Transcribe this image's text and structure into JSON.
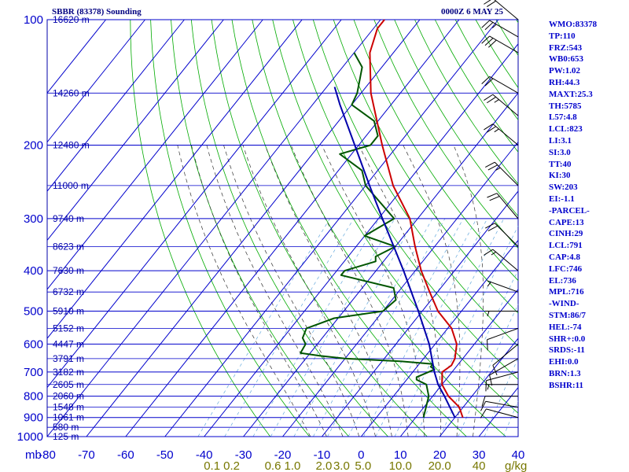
{
  "header": {
    "station": "SBBR (83378) Sounding",
    "datetime": "0000Z  6 MAY 25"
  },
  "index_list": [
    "WMO:83378",
    "TP:110",
    "FRZ:543",
    "WB0:653",
    "PW:1.02",
    "RH:44.3",
    "MAXT:25.3",
    "TH:5785",
    "L57:4.8",
    "LCL:823",
    "LI:3.1",
    "SI:3.0",
    "TT:40",
    "KI:30",
    "SW:203",
    "EI:-1.1",
    "-PARCEL-",
    "CAPE:13",
    "CINH:29",
    "LCL:791",
    "CAP:4.8",
    "LFC:746",
    "EL:736",
    "MPL:716",
    "-WIND-",
    "STM:86/7",
    "HEL:-74",
    "SHR+:0.0",
    "SRDS:-11",
    "EHI:0.0",
    "BRN:1.3",
    "BSHR:11"
  ],
  "chart_data": {
    "type": "line",
    "title": "SBBR (83378) Sounding",
    "x_unit_label": "mb",
    "xlim": [
      -80,
      40
    ],
    "ylim": [
      1000,
      100
    ],
    "y_scale": "log",
    "pressure_ticks": [
      100,
      200,
      300,
      400,
      500,
      600,
      700,
      800,
      900,
      1000
    ],
    "temperature_ticks": [
      -80,
      -70,
      -60,
      -50,
      -40,
      -30,
      -20,
      -10,
      0,
      10,
      20,
      30,
      40
    ],
    "mixing_ratio_unit": "g/kg",
    "mixing_ratio_labels": [
      {
        "label": "0.1",
        "t": -38
      },
      {
        "label": "0.2",
        "t": -33
      },
      {
        "label": "0.6",
        "t": -22.5
      },
      {
        "label": "1.0",
        "t": -17.5
      },
      {
        "label": "2.0",
        "t": -9.5
      },
      {
        "label": "3.0",
        "t": -5
      },
      {
        "label": "5.0",
        "t": 0.5
      },
      {
        "label": "10.0",
        "t": 10
      },
      {
        "label": "20.0",
        "t": 20
      },
      {
        "label": "40",
        "t": 30
      }
    ],
    "height_labels": [
      {
        "p": 100,
        "label": "16620 m"
      },
      {
        "p": 150,
        "label": "14260 m"
      },
      {
        "p": 200,
        "label": "12480 m"
      },
      {
        "p": 250,
        "label": "11000 m"
      },
      {
        "p": 300,
        "label": "9740 m"
      },
      {
        "p": 350,
        "label": "8623 m"
      },
      {
        "p": 400,
        "label": "7630 m"
      },
      {
        "p": 450,
        "label": "6732 m"
      },
      {
        "p": 500,
        "label": "5910 m"
      },
      {
        "p": 550,
        "label": "5152 m"
      },
      {
        "p": 600,
        "label": "4447 m"
      },
      {
        "p": 650,
        "label": "3791 m"
      },
      {
        "p": 700,
        "label": "3182 m"
      },
      {
        "p": 750,
        "label": "2605 m"
      },
      {
        "p": 800,
        "label": "2060 m"
      },
      {
        "p": 850,
        "label": "1548 m"
      },
      {
        "p": 900,
        "label": "1061 m"
      },
      {
        "p": 950,
        "label": "580 m"
      },
      {
        "p": 1000,
        "label": "125 m"
      }
    ],
    "series": [
      {
        "key": "temperature",
        "color": "#cc0000",
        "points": [
          {
            "p": 900,
            "t": 22
          },
          {
            "p": 850,
            "t": 19
          },
          {
            "p": 800,
            "t": 14
          },
          {
            "p": 750,
            "t": 10
          },
          {
            "p": 700,
            "t": 7.5
          },
          {
            "p": 675,
            "t": 8.5
          },
          {
            "p": 650,
            "t": 8
          },
          {
            "p": 600,
            "t": 5.5
          },
          {
            "p": 550,
            "t": 1
          },
          {
            "p": 500,
            "t": -6
          },
          {
            "p": 450,
            "t": -12
          },
          {
            "p": 400,
            "t": -18.5
          },
          {
            "p": 350,
            "t": -25
          },
          {
            "p": 300,
            "t": -32
          },
          {
            "p": 250,
            "t": -43
          },
          {
            "p": 200,
            "t": -54
          },
          {
            "p": 150,
            "t": -67.5
          },
          {
            "p": 120,
            "t": -76
          },
          {
            "p": 105,
            "t": -79
          },
          {
            "p": 100,
            "t": -79
          }
        ]
      },
      {
        "key": "dewpoint",
        "color": "#005500",
        "points": [
          {
            "p": 900,
            "t": 12
          },
          {
            "p": 800,
            "t": 9
          },
          {
            "p": 750,
            "t": 6
          },
          {
            "p": 730,
            "t": 2.5
          },
          {
            "p": 720,
            "t": 2
          },
          {
            "p": 700,
            "t": 4
          },
          {
            "p": 690,
            "t": 5
          },
          {
            "p": 680,
            "t": 3.5
          },
          {
            "p": 670,
            "t": 3.5
          },
          {
            "p": 660,
            "t": -5
          },
          {
            "p": 650,
            "t": -20
          },
          {
            "p": 640,
            "t": -27
          },
          {
            "p": 630,
            "t": -32.5
          },
          {
            "p": 600,
            "t": -33
          },
          {
            "p": 580,
            "t": -35
          },
          {
            "p": 550,
            "t": -36
          },
          {
            "p": 520,
            "t": -31
          },
          {
            "p": 500,
            "t": -20
          },
          {
            "p": 470,
            "t": -19
          },
          {
            "p": 440,
            "t": -22
          },
          {
            "p": 410,
            "t": -38
          },
          {
            "p": 400,
            "t": -38
          },
          {
            "p": 380,
            "t": -32
          },
          {
            "p": 370,
            "t": -33
          },
          {
            "p": 350,
            "t": -30
          },
          {
            "p": 330,
            "t": -40
          },
          {
            "p": 300,
            "t": -36
          },
          {
            "p": 250,
            "t": -50
          },
          {
            "p": 230,
            "t": -54
          },
          {
            "p": 210,
            "t": -63
          },
          {
            "p": 200,
            "t": -57
          },
          {
            "p": 190,
            "t": -57
          },
          {
            "p": 175,
            "t": -61
          },
          {
            "p": 160,
            "t": -70
          },
          {
            "p": 150,
            "t": -71
          },
          {
            "p": 130,
            "t": -75
          },
          {
            "p": 120,
            "t": -80
          }
        ]
      },
      {
        "key": "parcel",
        "color": "#0000aa",
        "points": [
          {
            "p": 900,
            "t": 20
          },
          {
            "p": 800,
            "t": 13
          },
          {
            "p": 750,
            "t": 9
          },
          {
            "p": 700,
            "t": 5.5
          },
          {
            "p": 600,
            "t": -1.5
          },
          {
            "p": 500,
            "t": -11
          },
          {
            "p": 400,
            "t": -23
          },
          {
            "p": 300,
            "t": -39
          },
          {
            "p": 250,
            "t": -49
          },
          {
            "p": 200,
            "t": -61
          },
          {
            "p": 160,
            "t": -73
          },
          {
            "p": 145,
            "t": -78
          }
        ]
      }
    ],
    "wind_barbs": [
      {
        "p": 900,
        "dir": 285,
        "spd": 10
      },
      {
        "p": 850,
        "dir": 280,
        "spd": 10
      },
      {
        "p": 800,
        "dir": 270,
        "spd": 10
      },
      {
        "p": 750,
        "dir": 270,
        "spd": 5
      },
      {
        "p": 700,
        "dir": 255,
        "spd": 10
      },
      {
        "p": 650,
        "dir": 240,
        "spd": 10
      },
      {
        "p": 600,
        "dir": 230,
        "spd": 10
      },
      {
        "p": 550,
        "dir": 250,
        "spd": 10
      },
      {
        "p": 500,
        "dir": 270,
        "spd": 5
      },
      {
        "p": 450,
        "dir": 290,
        "spd": 5
      },
      {
        "p": 400,
        "dir": 310,
        "spd": 15
      },
      {
        "p": 350,
        "dir": 315,
        "spd": 20
      },
      {
        "p": 300,
        "dir": 320,
        "spd": 20
      },
      {
        "p": 250,
        "dir": 315,
        "spd": 25
      },
      {
        "p": 200,
        "dir": 310,
        "spd": 25
      },
      {
        "p": 170,
        "dir": 310,
        "spd": 25
      },
      {
        "p": 150,
        "dir": 300,
        "spd": 20
      },
      {
        "p": 120,
        "dir": 300,
        "spd": 30
      },
      {
        "p": 110,
        "dir": 300,
        "spd": 25
      },
      {
        "p": 100,
        "dir": 310,
        "spd": 20
      }
    ]
  }
}
